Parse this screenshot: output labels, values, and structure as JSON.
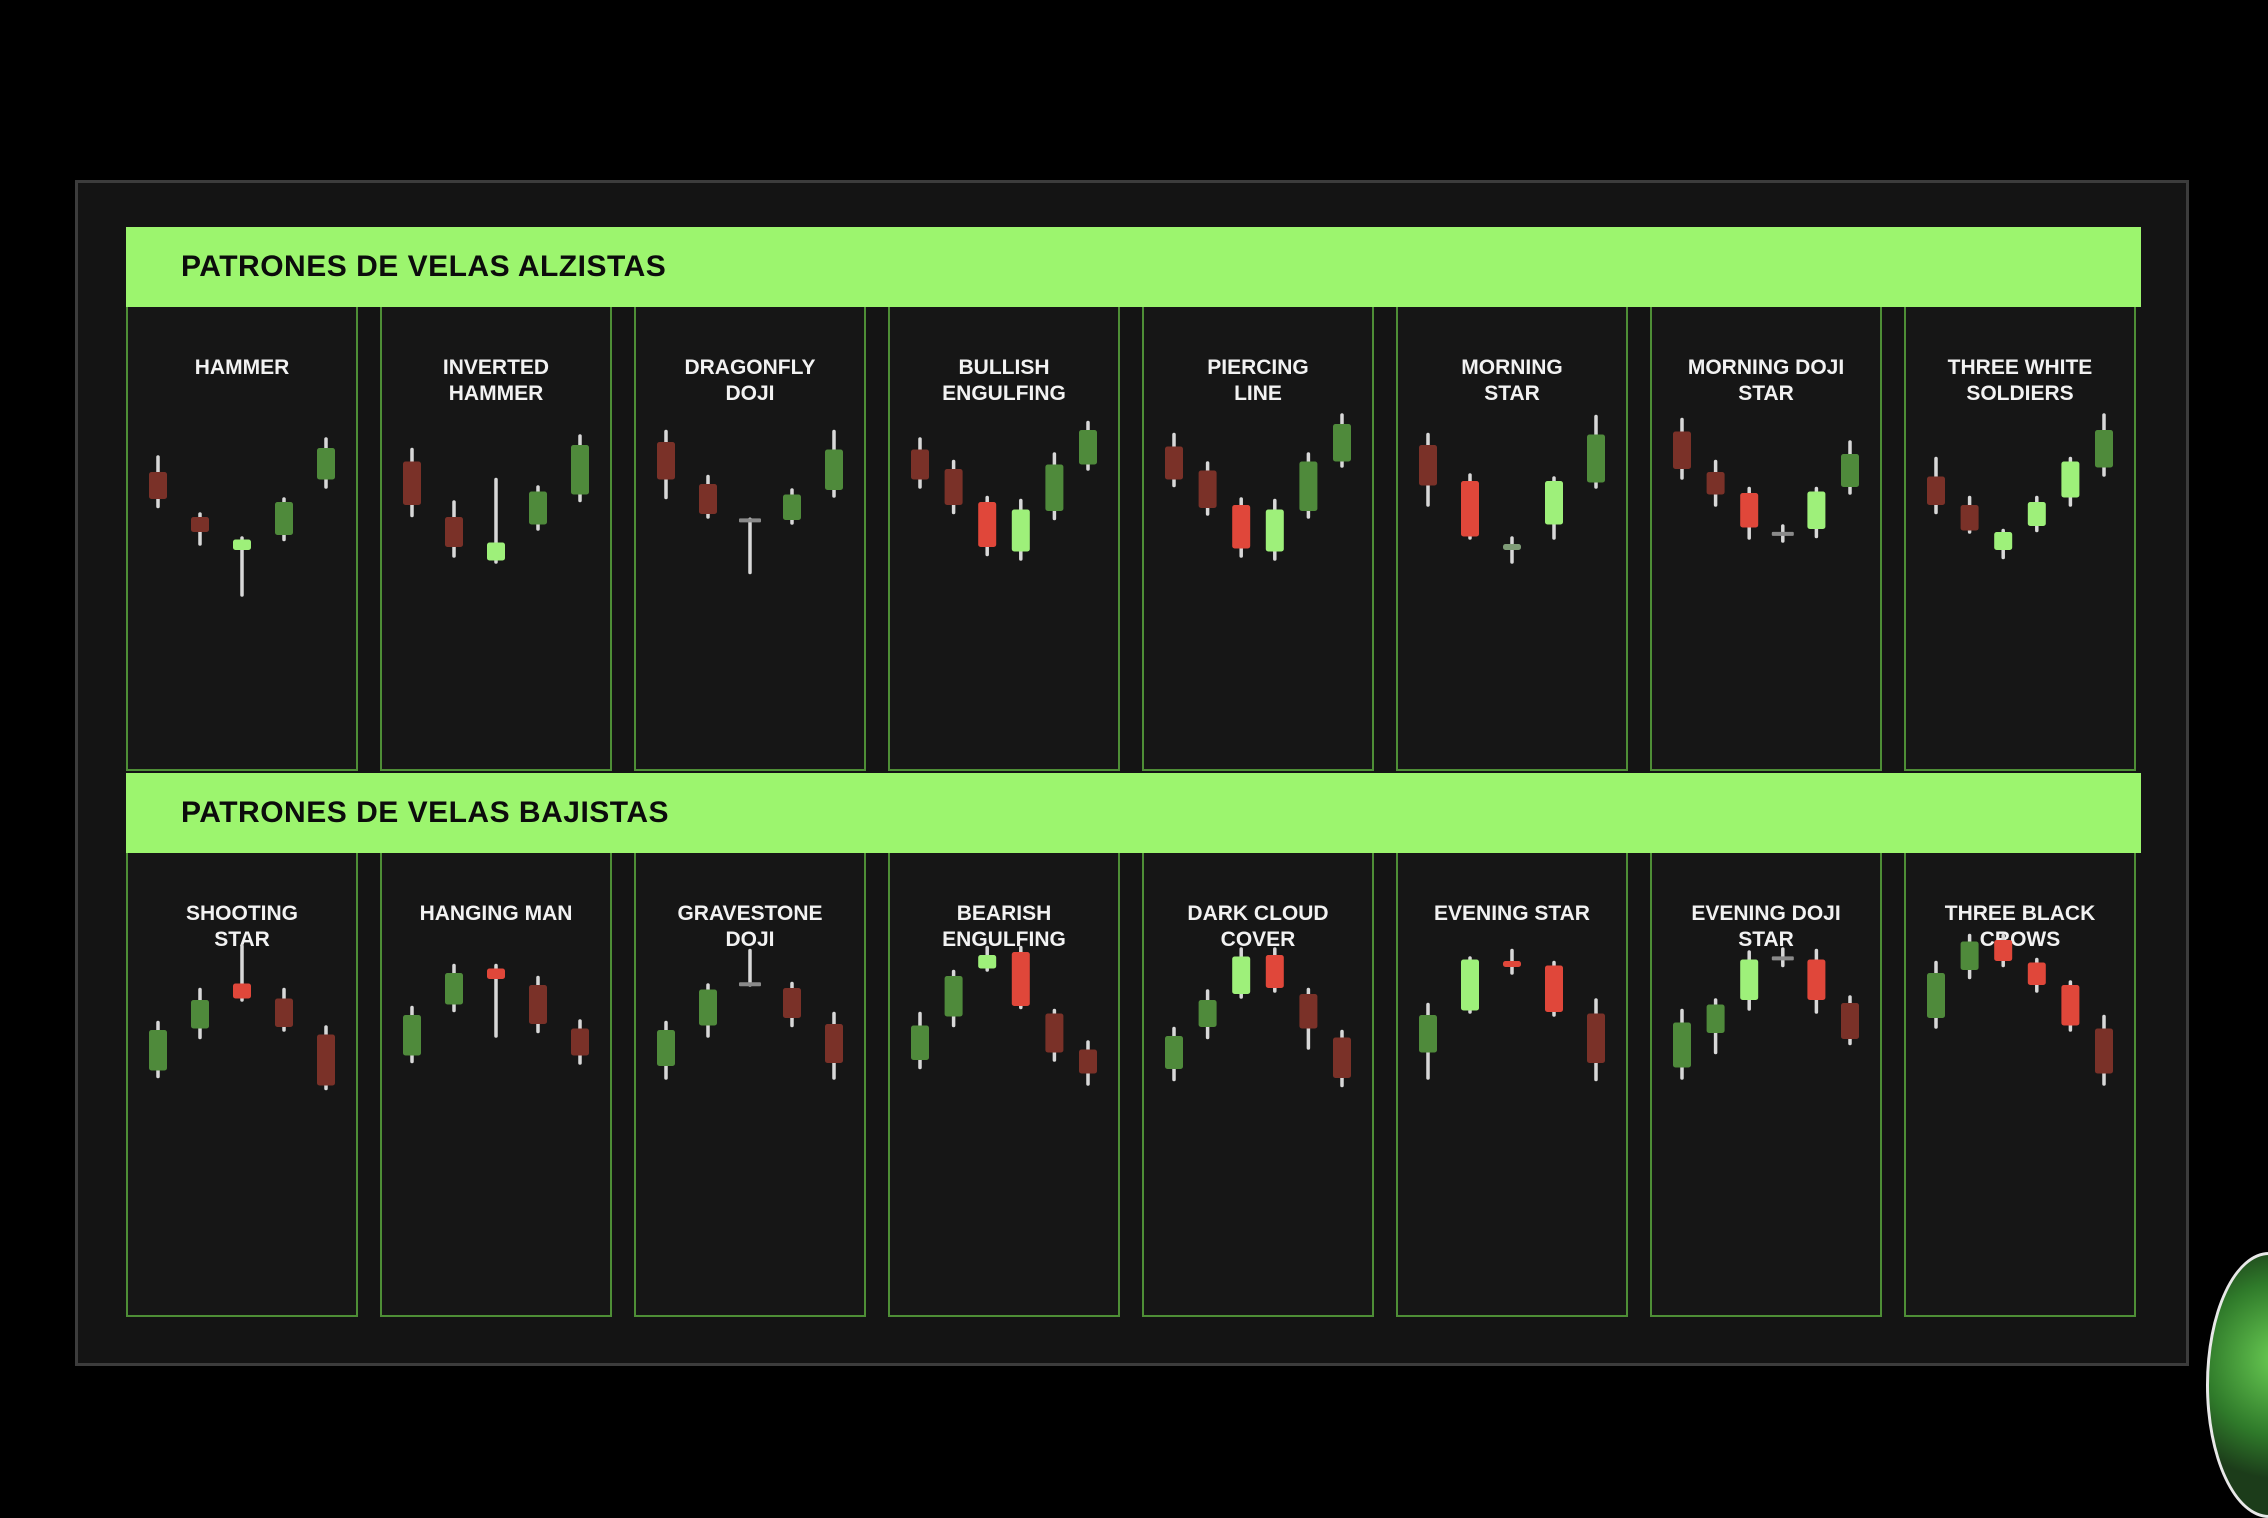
{
  "sections": [
    {
      "title": "PATRONES DE VELAS ALZISTAS",
      "patterns": [
        {
          "name": "HAMMER",
          "candles": [
            {
              "o": 0.6,
              "c": 0.42,
              "h": 0.7,
              "l": 0.37,
              "color": "dark-red"
            },
            {
              "o": 0.3,
              "c": 0.2,
              "h": 0.32,
              "l": 0.12,
              "color": "dark-red"
            },
            {
              "o": 0.15,
              "c": 0.08,
              "h": 0.16,
              "l": -0.22,
              "color": "light-green"
            },
            {
              "o": 0.18,
              "c": 0.4,
              "h": 0.42,
              "l": 0.15,
              "color": "green"
            },
            {
              "o": 0.55,
              "c": 0.76,
              "h": 0.82,
              "l": 0.5,
              "color": "green"
            }
          ]
        },
        {
          "name": "INVERTED\nHAMMER",
          "candles": [
            {
              "o": 0.67,
              "c": 0.38,
              "h": 0.75,
              "l": 0.31,
              "color": "dark-red"
            },
            {
              "o": 0.3,
              "c": 0.1,
              "h": 0.4,
              "l": 0.04,
              "color": "dark-red"
            },
            {
              "o": 0.01,
              "c": 0.13,
              "h": 0.55,
              "l": 0.0,
              "color": "light-green"
            },
            {
              "o": 0.25,
              "c": 0.47,
              "h": 0.5,
              "l": 0.22,
              "color": "green"
            },
            {
              "o": 0.45,
              "c": 0.78,
              "h": 0.84,
              "l": 0.41,
              "color": "green"
            }
          ]
        },
        {
          "name": "DRAGONFLY\nDOJI",
          "candles": [
            {
              "o": 0.8,
              "c": 0.55,
              "h": 0.87,
              "l": 0.43,
              "color": "dark-red"
            },
            {
              "o": 0.52,
              "c": 0.32,
              "h": 0.57,
              "l": 0.3,
              "color": "dark-red"
            },
            {
              "o": 0.28,
              "c": 0.275,
              "h": 0.285,
              "l": -0.07,
              "color": "gray"
            },
            {
              "o": 0.28,
              "c": 0.45,
              "h": 0.48,
              "l": 0.26,
              "color": "green"
            },
            {
              "o": 0.48,
              "c": 0.75,
              "h": 0.87,
              "l": 0.44,
              "color": "green"
            }
          ]
        },
        {
          "name": "BULLISH\nENGULFING",
          "candles": [
            {
              "o": 0.75,
              "c": 0.55,
              "h": 0.82,
              "l": 0.5,
              "color": "dark-red"
            },
            {
              "o": 0.62,
              "c": 0.38,
              "h": 0.67,
              "l": 0.33,
              "color": "dark-red"
            },
            {
              "o": 0.4,
              "c": 0.1,
              "h": 0.43,
              "l": 0.05,
              "color": "red"
            },
            {
              "o": 0.07,
              "c": 0.35,
              "h": 0.41,
              "l": 0.02,
              "color": "light-green"
            },
            {
              "o": 0.34,
              "c": 0.65,
              "h": 0.72,
              "l": 0.29,
              "color": "green"
            },
            {
              "o": 0.65,
              "c": 0.88,
              "h": 0.93,
              "l": 0.62,
              "color": "green"
            }
          ]
        },
        {
          "name": "PIERCING\nLINE",
          "candles": [
            {
              "o": 0.77,
              "c": 0.55,
              "h": 0.85,
              "l": 0.51,
              "color": "dark-red"
            },
            {
              "o": 0.61,
              "c": 0.36,
              "h": 0.66,
              "l": 0.32,
              "color": "dark-red"
            },
            {
              "o": 0.38,
              "c": 0.09,
              "h": 0.42,
              "l": 0.04,
              "color": "red"
            },
            {
              "o": 0.07,
              "c": 0.35,
              "h": 0.41,
              "l": 0.02,
              "color": "light-green"
            },
            {
              "o": 0.34,
              "c": 0.67,
              "h": 0.72,
              "l": 0.3,
              "color": "green"
            },
            {
              "o": 0.67,
              "c": 0.92,
              "h": 0.98,
              "l": 0.64,
              "color": "green"
            }
          ]
        },
        {
          "name": "MORNING\nSTAR",
          "candles": [
            {
              "o": 0.78,
              "c": 0.51,
              "h": 0.85,
              "l": 0.38,
              "color": "dark-red"
            },
            {
              "o": 0.54,
              "c": 0.17,
              "h": 0.58,
              "l": 0.16,
              "color": "red"
            },
            {
              "o": 0.12,
              "c": 0.08,
              "h": 0.16,
              "l": 0.0,
              "color": "gray-green"
            },
            {
              "o": 0.25,
              "c": 0.54,
              "h": 0.56,
              "l": 0.16,
              "color": "light-green"
            },
            {
              "o": 0.53,
              "c": 0.85,
              "h": 0.97,
              "l": 0.5,
              "color": "green"
            }
          ]
        },
        {
          "name": "MORNING DOJI\nSTAR",
          "candles": [
            {
              "o": 0.87,
              "c": 0.62,
              "h": 0.95,
              "l": 0.56,
              "color": "dark-red"
            },
            {
              "o": 0.6,
              "c": 0.45,
              "h": 0.67,
              "l": 0.38,
              "color": "dark-red"
            },
            {
              "o": 0.46,
              "c": 0.23,
              "h": 0.49,
              "l": 0.16,
              "color": "red"
            },
            {
              "o": 0.19,
              "c": 0.185,
              "h": 0.24,
              "l": 0.14,
              "color": "gray"
            },
            {
              "o": 0.22,
              "c": 0.47,
              "h": 0.49,
              "l": 0.17,
              "color": "light-green"
            },
            {
              "o": 0.5,
              "c": 0.72,
              "h": 0.8,
              "l": 0.46,
              "color": "green"
            }
          ]
        },
        {
          "name": "THREE WHITE\nSOLDIERS",
          "candles": [
            {
              "o": 0.57,
              "c": 0.38,
              "h": 0.69,
              "l": 0.33,
              "color": "dark-red"
            },
            {
              "o": 0.38,
              "c": 0.21,
              "h": 0.43,
              "l": 0.2,
              "color": "dark-red"
            },
            {
              "o": 0.2,
              "c": 0.08,
              "h": 0.21,
              "l": 0.03,
              "color": "light-green"
            },
            {
              "o": 0.24,
              "c": 0.4,
              "h": 0.43,
              "l": 0.21,
              "color": "light-green"
            },
            {
              "o": 0.43,
              "c": 0.67,
              "h": 0.69,
              "l": 0.38,
              "color": "light-green"
            },
            {
              "o": 0.63,
              "c": 0.88,
              "h": 0.98,
              "l": 0.58,
              "color": "green"
            }
          ]
        }
      ]
    },
    {
      "title": "PATRONES DE VELAS BAJISTAS",
      "patterns": [
        {
          "name": "SHOOTING\nSTAR",
          "candles": [
            {
              "o": 0.25,
              "c": 0.52,
              "h": 0.57,
              "l": 0.21,
              "color": "green"
            },
            {
              "o": 0.53,
              "c": 0.72,
              "h": 0.79,
              "l": 0.47,
              "color": "green"
            },
            {
              "o": 0.73,
              "c": 0.83,
              "h": 1.08,
              "l": 0.72,
              "color": "red"
            },
            {
              "o": 0.73,
              "c": 0.54,
              "h": 0.79,
              "l": 0.52,
              "color": "dark-red"
            },
            {
              "o": 0.49,
              "c": 0.15,
              "h": 0.54,
              "l": 0.13,
              "color": "dark-red"
            }
          ]
        },
        {
          "name": "HANGING MAN",
          "candles": [
            {
              "o": 0.35,
              "c": 0.62,
              "h": 0.67,
              "l": 0.31,
              "color": "green"
            },
            {
              "o": 0.69,
              "c": 0.9,
              "h": 0.95,
              "l": 0.65,
              "color": "green"
            },
            {
              "o": 0.93,
              "c": 0.86,
              "h": 0.95,
              "l": 0.48,
              "color": "red"
            },
            {
              "o": 0.82,
              "c": 0.56,
              "h": 0.87,
              "l": 0.51,
              "color": "dark-red"
            },
            {
              "o": 0.53,
              "c": 0.35,
              "h": 0.58,
              "l": 0.3,
              "color": "dark-red"
            }
          ]
        },
        {
          "name": "GRAVESTONE\nDOJI",
          "candles": [
            {
              "o": 0.28,
              "c": 0.52,
              "h": 0.57,
              "l": 0.2,
              "color": "green"
            },
            {
              "o": 0.55,
              "c": 0.79,
              "h": 0.82,
              "l": 0.48,
              "color": "green"
            },
            {
              "o": 0.83,
              "c": 0.82,
              "h": 1.05,
              "l": 0.82,
              "color": "gray"
            },
            {
              "o": 0.8,
              "c": 0.6,
              "h": 0.83,
              "l": 0.55,
              "color": "dark-red"
            },
            {
              "o": 0.56,
              "c": 0.3,
              "h": 0.63,
              "l": 0.2,
              "color": "dark-red"
            }
          ]
        },
        {
          "name": "BEARISH\nENGULFING",
          "candles": [
            {
              "o": 0.32,
              "c": 0.55,
              "h": 0.63,
              "l": 0.27,
              "color": "green"
            },
            {
              "o": 0.61,
              "c": 0.88,
              "h": 0.91,
              "l": 0.55,
              "color": "green"
            },
            {
              "o": 0.93,
              "c": 1.02,
              "h": 1.07,
              "l": 0.92,
              "color": "light-green"
            },
            {
              "o": 1.04,
              "c": 0.68,
              "h": 1.07,
              "l": 0.67,
              "color": "red"
            },
            {
              "o": 0.63,
              "c": 0.37,
              "h": 0.65,
              "l": 0.32,
              "color": "dark-red"
            },
            {
              "o": 0.39,
              "c": 0.23,
              "h": 0.44,
              "l": 0.16,
              "color": "dark-red"
            }
          ]
        },
        {
          "name": "DARK CLOUD\nCOVER",
          "candles": [
            {
              "o": 0.26,
              "c": 0.48,
              "h": 0.53,
              "l": 0.19,
              "color": "green"
            },
            {
              "o": 0.54,
              "c": 0.72,
              "h": 0.78,
              "l": 0.47,
              "color": "green"
            },
            {
              "o": 0.76,
              "c": 1.01,
              "h": 1.06,
              "l": 0.74,
              "color": "light-green"
            },
            {
              "o": 1.02,
              "c": 0.8,
              "h": 1.06,
              "l": 0.78,
              "color": "red"
            },
            {
              "o": 0.76,
              "c": 0.53,
              "h": 0.79,
              "l": 0.4,
              "color": "dark-red"
            },
            {
              "o": 0.47,
              "c": 0.2,
              "h": 0.51,
              "l": 0.15,
              "color": "dark-red"
            }
          ]
        },
        {
          "name": "EVENING STAR",
          "candles": [
            {
              "o": 0.37,
              "c": 0.62,
              "h": 0.69,
              "l": 0.2,
              "color": "green"
            },
            {
              "o": 0.65,
              "c": 0.99,
              "h": 1.0,
              "l": 0.64,
              "color": "light-green"
            },
            {
              "o": 0.98,
              "c": 0.94,
              "h": 1.05,
              "l": 0.9,
              "color": "red"
            },
            {
              "o": 0.95,
              "c": 0.64,
              "h": 0.97,
              "l": 0.62,
              "color": "red"
            },
            {
              "o": 0.63,
              "c": 0.3,
              "h": 0.72,
              "l": 0.19,
              "color": "dark-red"
            }
          ]
        },
        {
          "name": "EVENING DOJI\nSTAR",
          "candles": [
            {
              "o": 0.27,
              "c": 0.57,
              "h": 0.65,
              "l": 0.2,
              "color": "green"
            },
            {
              "o": 0.5,
              "c": 0.69,
              "h": 0.72,
              "l": 0.37,
              "color": "green"
            },
            {
              "o": 0.72,
              "c": 0.99,
              "h": 1.04,
              "l": 0.66,
              "color": "light-green"
            },
            {
              "o": 1.0,
              "c": 0.995,
              "h": 1.06,
              "l": 0.95,
              "color": "gray"
            },
            {
              "o": 0.99,
              "c": 0.72,
              "h": 1.05,
              "l": 0.64,
              "color": "red"
            },
            {
              "o": 0.7,
              "c": 0.46,
              "h": 0.74,
              "l": 0.43,
              "color": "dark-red"
            }
          ]
        },
        {
          "name": "THREE BLACK\nCROWS",
          "candles": [
            {
              "o": 0.6,
              "c": 0.9,
              "h": 0.97,
              "l": 0.54,
              "color": "green"
            },
            {
              "o": 0.92,
              "c": 1.11,
              "h": 1.15,
              "l": 0.87,
              "color": "green"
            },
            {
              "o": 1.12,
              "c": 0.98,
              "h": 1.15,
              "l": 0.95,
              "color": "red"
            },
            {
              "o": 0.97,
              "c": 0.82,
              "h": 0.99,
              "l": 0.78,
              "color": "red"
            },
            {
              "o": 0.82,
              "c": 0.55,
              "h": 0.84,
              "l": 0.52,
              "color": "red"
            },
            {
              "o": 0.53,
              "c": 0.23,
              "h": 0.61,
              "l": 0.16,
              "color": "dark-red"
            }
          ]
        }
      ]
    }
  ],
  "colors": {
    "banner": "#9cf56e",
    "panel_border": "#4e8e36",
    "dark-red": "#7a3128",
    "red": "#e0473a",
    "green": "#4f8a3b",
    "light-green": "#9ef07a",
    "gray": "#8a8a8a",
    "gray-green": "#7f9c77",
    "wick": "#d8d8d8"
  }
}
